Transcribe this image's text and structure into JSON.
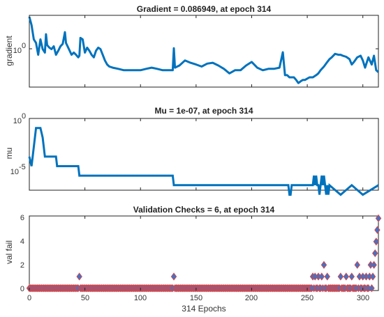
{
  "colors": {
    "line": "#0072BD",
    "marker_fill": "#4472C4",
    "marker_edge": "#E8413A",
    "axes": "#222222"
  },
  "chart_data": [
    {
      "type": "line",
      "title": "Gradient = 0.086949, at epoch 314",
      "ylabel": "gradient",
      "xlabel": "",
      "xlim": [
        0,
        314
      ],
      "ylim": [
        0.03,
        5
      ],
      "yscale": "log",
      "yticks": [
        {
          "value": 1,
          "label_base": "10",
          "label_exp": "0"
        }
      ],
      "xticks": [],
      "grid": false,
      "x": [
        0,
        2,
        4,
        6,
        8,
        10,
        12,
        14,
        15,
        16,
        18,
        20,
        22,
        24,
        26,
        28,
        30,
        32,
        33,
        35,
        38,
        40,
        42,
        44,
        45,
        46,
        48,
        50,
        52,
        54,
        56,
        58,
        60,
        62,
        64,
        66,
        68,
        70,
        72,
        75,
        80,
        85,
        90,
        95,
        100,
        105,
        110,
        115,
        120,
        125,
        129,
        130,
        131,
        135,
        140,
        145,
        150,
        155,
        160,
        165,
        170,
        175,
        180,
        185,
        190,
        195,
        200,
        205,
        210,
        215,
        220,
        225,
        228,
        230,
        232,
        234,
        236,
        238,
        240,
        242,
        244,
        246,
        248,
        250,
        252,
        255,
        258,
        260,
        262,
        265,
        268,
        270,
        272,
        275,
        278,
        280,
        282,
        285,
        288,
        290,
        292,
        295,
        298,
        300,
        302,
        305,
        308,
        310,
        312,
        314
      ],
      "values": [
        4.5,
        2.5,
        0.9,
        0.7,
        0.3,
        0.9,
        0.45,
        0.35,
        1.3,
        0.6,
        0.5,
        0.45,
        0.55,
        0.3,
        0.4,
        0.55,
        0.65,
        1.5,
        0.7,
        0.5,
        0.3,
        0.35,
        0.3,
        0.25,
        0.28,
        1.0,
        0.9,
        0.35,
        0.5,
        0.4,
        0.3,
        0.25,
        0.4,
        0.5,
        0.45,
        0.3,
        0.2,
        0.15,
        0.13,
        0.12,
        0.11,
        0.1,
        0.1,
        0.1,
        0.1,
        0.11,
        0.12,
        0.11,
        0.1,
        0.1,
        0.1,
        0.48,
        0.12,
        0.14,
        0.2,
        0.17,
        0.15,
        0.13,
        0.16,
        0.17,
        0.14,
        0.11,
        0.08,
        0.1,
        0.1,
        0.14,
        0.18,
        0.12,
        0.1,
        0.11,
        0.11,
        0.12,
        0.36,
        0.07,
        0.07,
        0.06,
        0.06,
        0.06,
        0.05,
        0.04,
        0.045,
        0.05,
        0.05,
        0.055,
        0.06,
        0.06,
        0.07,
        0.08,
        0.1,
        0.13,
        0.18,
        0.22,
        0.25,
        0.32,
        0.3,
        0.3,
        0.28,
        0.26,
        0.22,
        0.15,
        0.18,
        0.25,
        0.28,
        0.2,
        0.12,
        0.25,
        0.15,
        0.28,
        0.1,
        0.087
      ]
    },
    {
      "type": "line",
      "title": "Mu = 1e-07, at epoch 314",
      "ylabel": "mu",
      "xlabel": "",
      "xlim": [
        0,
        314
      ],
      "ylim": [
        3e-08,
        1
      ],
      "yscale": "log",
      "yticks": [
        {
          "value": 1,
          "label_base": "10",
          "label_exp": "0"
        },
        {
          "value": 1e-05,
          "label_base": "10",
          "label_exp": "-5"
        }
      ],
      "xticks": [],
      "grid": false,
      "x": [
        0,
        2,
        3,
        4,
        5,
        6,
        7,
        8,
        10,
        12,
        13,
        14,
        24,
        25,
        26,
        44,
        45,
        46,
        129,
        130,
        131,
        233,
        234,
        235,
        236,
        237,
        238,
        239,
        240,
        241,
        242,
        243,
        244,
        245,
        255,
        256,
        257,
        258,
        259,
        260,
        261,
        262,
        263,
        264,
        265,
        266,
        267,
        268,
        269,
        270,
        280,
        290,
        300,
        314
      ],
      "values": [
        0.0001,
        1e-05,
        0.0001,
        0.001,
        0.01,
        0.1,
        0.1,
        0.1,
        0.1,
        0.01,
        0.001,
        0.0001,
        0.0001,
        1e-05,
        1e-05,
        1e-05,
        1e-06,
        1e-06,
        1e-06,
        1e-07,
        1e-07,
        1e-07,
        1e-08,
        1e-08,
        1e-07,
        1e-07,
        1e-07,
        1e-07,
        1e-07,
        1e-07,
        1e-07,
        1e-07,
        1e-07,
        1e-07,
        1e-07,
        1e-06,
        1e-07,
        1e-06,
        1e-07,
        1e-07,
        1e-08,
        1e-07,
        1e-06,
        1e-07,
        1e-06,
        1e-07,
        1e-08,
        1e-07,
        1e-08,
        1e-07,
        1e-08,
        1e-07,
        1e-08,
        1e-07
      ]
    },
    {
      "type": "scatter",
      "title": "Validation Checks = 6, at epoch 314",
      "ylabel": "val fail",
      "xlabel": "314 Epochs",
      "xlim": [
        0,
        314
      ],
      "ylim": [
        -0.2,
        6.2
      ],
      "yscale": "linear",
      "yticks": [
        {
          "value": 0,
          "label": "0"
        },
        {
          "value": 2,
          "label": "2"
        },
        {
          "value": 4,
          "label": "4"
        },
        {
          "value": 6,
          "label": "6"
        }
      ],
      "xticks": [
        {
          "value": 0,
          "label": "0"
        },
        {
          "value": 50,
          "label": "50"
        },
        {
          "value": 100,
          "label": "100"
        },
        {
          "value": 150,
          "label": "150"
        },
        {
          "value": 200,
          "label": "200"
        },
        {
          "value": 250,
          "label": "250"
        },
        {
          "value": 300,
          "label": "300"
        }
      ],
      "grid": false,
      "nonzero_points": [
        {
          "x": 45,
          "y": 1
        },
        {
          "x": 130,
          "y": 1
        },
        {
          "x": 255,
          "y": 1
        },
        {
          "x": 257,
          "y": 1
        },
        {
          "x": 260,
          "y": 1
        },
        {
          "x": 263,
          "y": 1
        },
        {
          "x": 265,
          "y": 2
        },
        {
          "x": 268,
          "y": 1
        },
        {
          "x": 280,
          "y": 1
        },
        {
          "x": 285,
          "y": 1
        },
        {
          "x": 290,
          "y": 1
        },
        {
          "x": 295,
          "y": 2
        },
        {
          "x": 297,
          "y": 1
        },
        {
          "x": 300,
          "y": 1
        },
        {
          "x": 303,
          "y": 1
        },
        {
          "x": 306,
          "y": 1
        },
        {
          "x": 307,
          "y": 2
        },
        {
          "x": 309,
          "y": 1
        },
        {
          "x": 310,
          "y": 2
        },
        {
          "x": 311,
          "y": 3
        },
        {
          "x": 312,
          "y": 4
        },
        {
          "x": 313,
          "y": 5
        },
        {
          "x": 314,
          "y": 6
        }
      ]
    }
  ]
}
